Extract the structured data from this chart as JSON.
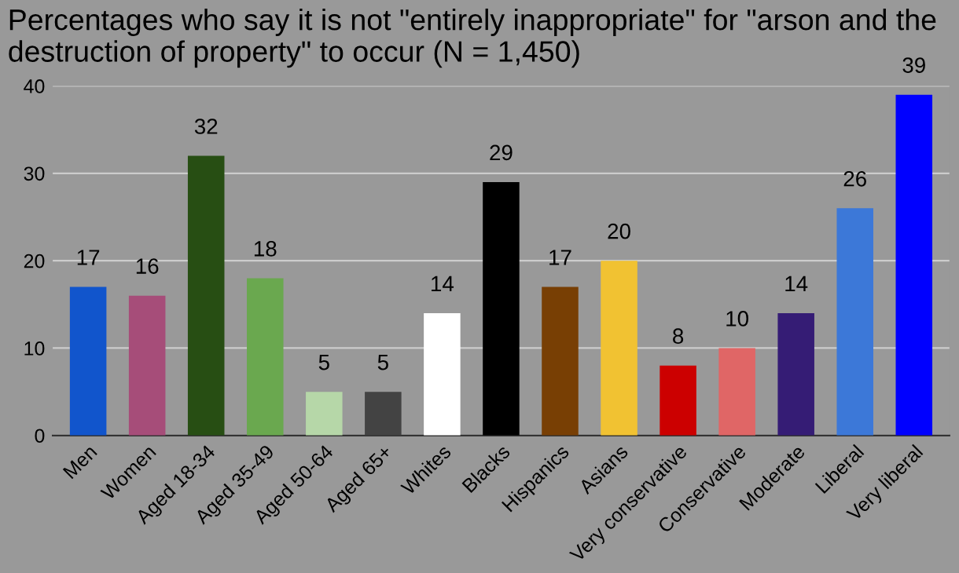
{
  "chart_data": {
    "type": "bar",
    "title": "Percentages who say it is not \"entirely inappropriate\" for \"arson and the destruction of property\" to occur (N = 1,450)",
    "categories": [
      "Men",
      "Women",
      "Aged 18-34",
      "Aged 35-49",
      "Aged 50-64",
      "Aged 65+",
      "Whites",
      "Blacks",
      "Hispanics",
      "Asians",
      "Very conservative",
      "Conservative",
      "Moderate",
      "Liberal",
      "Very liberal"
    ],
    "values": [
      17,
      16,
      32,
      18,
      5,
      5,
      14,
      29,
      17,
      20,
      8,
      10,
      14,
      26,
      39
    ],
    "colors": [
      "#1155cc",
      "#a64d79",
      "#274e13",
      "#6aa84f",
      "#b6d7a8",
      "#434343",
      "#ffffff",
      "#000000",
      "#783f04",
      "#f1c232",
      "#cc0000",
      "#e06666",
      "#351c75",
      "#3c78d8",
      "#0000ff"
    ],
    "ylim": [
      0,
      40
    ],
    "yticks": [
      0,
      10,
      20,
      30,
      40
    ],
    "grid": "y",
    "data_labels": true,
    "legend": false
  }
}
